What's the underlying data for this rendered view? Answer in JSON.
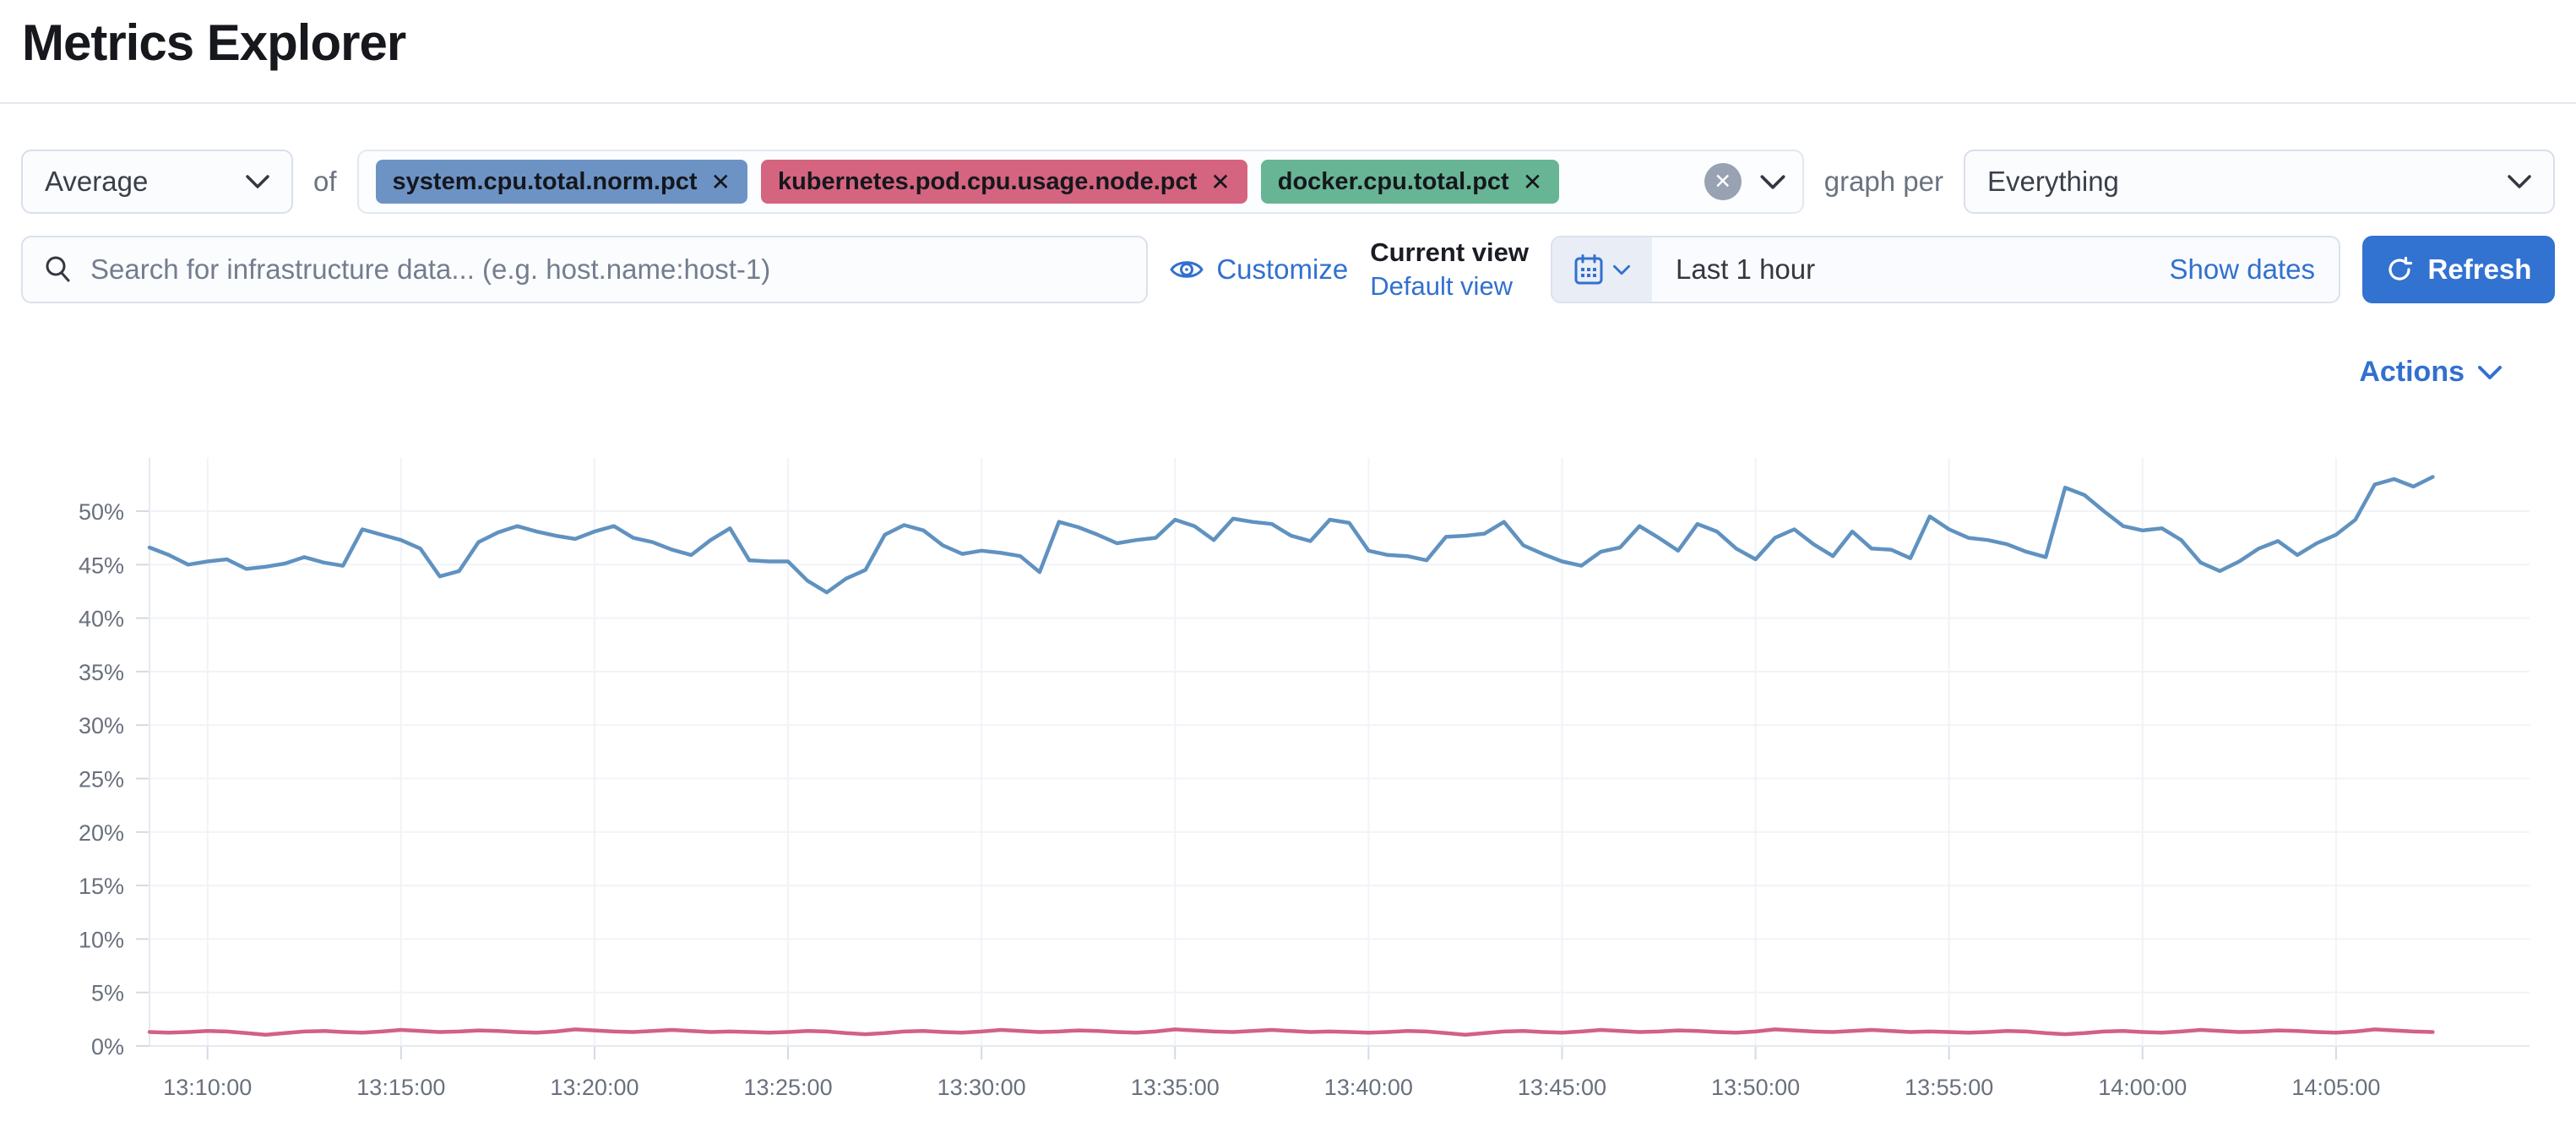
{
  "header": {
    "title": "Metrics Explorer"
  },
  "controls": {
    "aggregation": {
      "value": "Average"
    },
    "of_label": "of",
    "metrics": [
      {
        "label": "system.cpu.total.norm.pct",
        "color": "#6D93C5"
      },
      {
        "label": "kubernetes.pod.cpu.usage.node.pct",
        "color": "#D4647F"
      },
      {
        "label": "docker.cpu.total.pct",
        "color": "#67B595"
      }
    ],
    "remove_icon": "✕",
    "clear_icon": "✕",
    "graph_per_label": "graph per",
    "graph_per": {
      "value": "Everything"
    }
  },
  "toolbar": {
    "search_placeholder": "Search for infrastructure data... (e.g. host.name:host-1)",
    "customize_label": "Customize",
    "current_view_label": "Current view",
    "default_view_label": "Default view",
    "time_range_value": "Last 1 hour",
    "show_dates_label": "Show dates",
    "refresh_label": "Refresh"
  },
  "actions_label": "Actions",
  "colors": {
    "link_blue": "#3270D0",
    "refresh_button": "#3272D1",
    "axis_text": "#69707D",
    "axis_line": "#E6E9F0",
    "gridline": "#F1F3F8",
    "tick": "#D3DAE6"
  },
  "chart_data": {
    "type": "line",
    "title": "",
    "xlabel": "",
    "ylabel": "",
    "ylim": [
      0,
      55
    ],
    "grid": true,
    "legend": "none",
    "y_ticks": [
      0,
      5,
      10,
      15,
      20,
      25,
      30,
      35,
      40,
      45,
      50
    ],
    "y_tick_suffix": "%",
    "x_start": "13:08:30",
    "x_axis_end": "14:10:00",
    "interval_seconds": 30,
    "x_tick_labels": [
      "13:10:00",
      "13:15:00",
      "13:20:00",
      "13:25:00",
      "13:30:00",
      "13:35:00",
      "13:40:00",
      "13:45:00",
      "13:50:00",
      "13:55:00",
      "14:00:00",
      "14:05:00"
    ],
    "series": [
      {
        "name": "system.cpu.total.norm.pct (avg)",
        "color": "#6092C0",
        "values": [
          46.6,
          45.9,
          45.0,
          45.3,
          45.5,
          44.6,
          44.8,
          45.1,
          45.7,
          45.2,
          44.9,
          48.3,
          47.8,
          47.3,
          46.5,
          43.9,
          44.4,
          47.1,
          48.0,
          48.6,
          48.1,
          47.7,
          47.4,
          48.1,
          48.6,
          47.5,
          47.1,
          46.4,
          45.9,
          47.3,
          48.4,
          45.4,
          45.3,
          45.3,
          43.5,
          42.4,
          43.7,
          44.5,
          47.8,
          48.7,
          48.2,
          46.8,
          46.0,
          46.3,
          46.1,
          45.8,
          44.3,
          49.0,
          48.5,
          47.8,
          47.0,
          47.3,
          47.5,
          49.2,
          48.6,
          47.3,
          49.3,
          49.0,
          48.8,
          47.7,
          47.2,
          49.2,
          48.9,
          46.3,
          45.9,
          45.8,
          45.4,
          47.6,
          47.7,
          47.9,
          49.0,
          46.8,
          46.0,
          45.3,
          44.9,
          46.2,
          46.6,
          48.6,
          47.5,
          46.3,
          48.8,
          48.1,
          46.5,
          45.5,
          47.5,
          48.3,
          46.9,
          45.8,
          48.1,
          46.5,
          46.4,
          45.6,
          49.5,
          48.3,
          47.5,
          47.3,
          46.9,
          46.2,
          45.7,
          52.2,
          51.5,
          50.0,
          48.6,
          48.2,
          48.4,
          47.3,
          45.2,
          44.4,
          45.3,
          46.5,
          47.2,
          45.9,
          47.0,
          47.8,
          49.2,
          52.5,
          53.0,
          52.3,
          53.2
        ]
      },
      {
        "name": "kubernetes.pod.cpu.usage.node.pct (avg)",
        "color": "#D36086",
        "values": [
          1.3,
          1.25,
          1.3,
          1.4,
          1.35,
          1.2,
          1.05,
          1.2,
          1.35,
          1.4,
          1.3,
          1.25,
          1.35,
          1.5,
          1.4,
          1.3,
          1.35,
          1.45,
          1.4,
          1.3,
          1.25,
          1.35,
          1.55,
          1.45,
          1.35,
          1.3,
          1.4,
          1.5,
          1.4,
          1.3,
          1.35,
          1.3,
          1.25,
          1.3,
          1.4,
          1.35,
          1.2,
          1.1,
          1.2,
          1.35,
          1.4,
          1.3,
          1.25,
          1.35,
          1.5,
          1.4,
          1.3,
          1.35,
          1.45,
          1.4,
          1.3,
          1.25,
          1.35,
          1.55,
          1.45,
          1.35,
          1.3,
          1.4,
          1.5,
          1.4,
          1.3,
          1.35,
          1.3,
          1.25,
          1.3,
          1.4,
          1.35,
          1.2,
          1.05,
          1.2,
          1.35,
          1.4,
          1.3,
          1.25,
          1.35,
          1.5,
          1.4,
          1.3,
          1.35,
          1.45,
          1.4,
          1.3,
          1.25,
          1.35,
          1.55,
          1.45,
          1.35,
          1.3,
          1.4,
          1.5,
          1.4,
          1.3,
          1.35,
          1.3,
          1.25,
          1.3,
          1.4,
          1.35,
          1.2,
          1.1,
          1.2,
          1.35,
          1.4,
          1.3,
          1.25,
          1.35,
          1.5,
          1.4,
          1.3,
          1.35,
          1.45,
          1.4,
          1.3,
          1.25,
          1.35,
          1.55,
          1.45,
          1.35,
          1.3
        ]
      }
    ]
  }
}
